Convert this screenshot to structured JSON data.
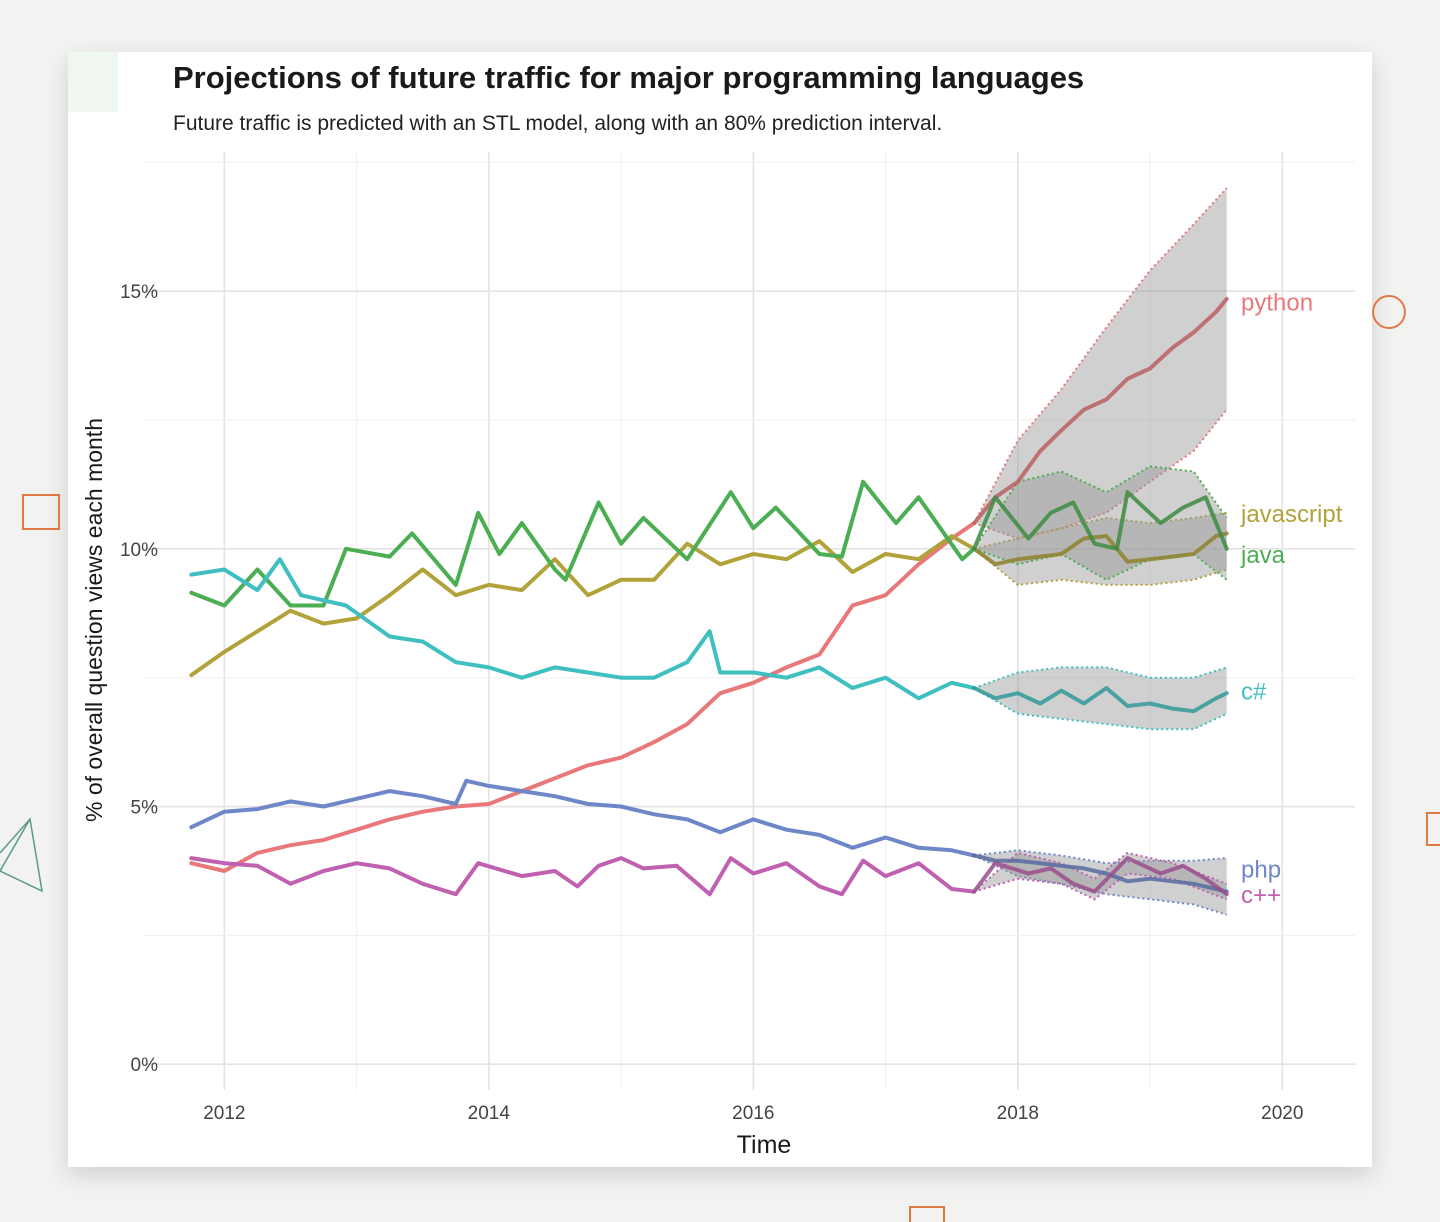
{
  "chart_data": {
    "type": "line",
    "title": "Projections of future traffic for major programming languages",
    "subtitle": "Future traffic is predicted with an STL model, along with an 80% prediction interval.",
    "xlabel": "Time",
    "ylabel": "% of overall question views each month",
    "xlim": [
      2011.4,
      2020.55
    ],
    "ylim": [
      -0.5,
      17.7
    ],
    "x_ticks": [
      2012,
      2014,
      2016,
      2018,
      2020
    ],
    "x_tick_labels": [
      "2012",
      "2014",
      "2016",
      "2018",
      "2020"
    ],
    "y_ticks": [
      0,
      5,
      10,
      15
    ],
    "y_tick_labels": [
      "0%",
      "5%",
      "10%",
      "15%"
    ],
    "legend": "direct labels at line ends (right)",
    "forecast_start": 2017.67,
    "series": [
      {
        "name": "python",
        "label": "python",
        "color": "#e8787a",
        "observed": [
          [
            2011.75,
            3.9
          ],
          [
            2012,
            3.75
          ],
          [
            2012.25,
            4.1
          ],
          [
            2012.5,
            4.25
          ],
          [
            2012.75,
            4.35
          ],
          [
            2013,
            4.55
          ],
          [
            2013.25,
            4.75
          ],
          [
            2013.5,
            4.9
          ],
          [
            2013.75,
            5
          ],
          [
            2014,
            5.05
          ],
          [
            2014.25,
            5.3
          ],
          [
            2014.5,
            5.55
          ],
          [
            2014.75,
            5.8
          ],
          [
            2015,
            5.95
          ],
          [
            2015.25,
            6.25
          ],
          [
            2015.5,
            6.6
          ],
          [
            2015.75,
            7.2
          ],
          [
            2016,
            7.4
          ],
          [
            2016.25,
            7.7
          ],
          [
            2016.5,
            7.95
          ],
          [
            2016.75,
            8.9
          ],
          [
            2017,
            9.1
          ],
          [
            2017.25,
            9.7
          ],
          [
            2017.5,
            10.2
          ],
          [
            2017.67,
            10.5
          ]
        ],
        "forecast": [
          [
            2017.67,
            10.5
          ],
          [
            2017.83,
            11.0
          ],
          [
            2018,
            11.3
          ],
          [
            2018.17,
            11.9
          ],
          [
            2018.33,
            12.3
          ],
          [
            2018.5,
            12.7
          ],
          [
            2018.67,
            12.9
          ],
          [
            2018.83,
            13.3
          ],
          [
            2019,
            13.5
          ],
          [
            2019.17,
            13.9
          ],
          [
            2019.33,
            14.2
          ],
          [
            2019.5,
            14.6
          ],
          [
            2019.58,
            14.85
          ]
        ],
        "interval": [
          [
            2017.67,
            10.5,
            10.5
          ],
          [
            2018,
            10.2,
            12.1
          ],
          [
            2018.33,
            10.4,
            13.1
          ],
          [
            2018.67,
            10.7,
            14.3
          ],
          [
            2019,
            11.3,
            15.4
          ],
          [
            2019.33,
            11.9,
            16.3
          ],
          [
            2019.58,
            12.7,
            17.0
          ]
        ]
      },
      {
        "name": "javascript",
        "label": "javascript",
        "color": "#b2a23a",
        "observed": [
          [
            2011.75,
            7.55
          ],
          [
            2012,
            8.0
          ],
          [
            2012.25,
            8.4
          ],
          [
            2012.5,
            8.8
          ],
          [
            2012.75,
            8.55
          ],
          [
            2013,
            8.65
          ],
          [
            2013.25,
            9.1
          ],
          [
            2013.5,
            9.6
          ],
          [
            2013.75,
            9.1
          ],
          [
            2014,
            9.3
          ],
          [
            2014.25,
            9.2
          ],
          [
            2014.5,
            9.8
          ],
          [
            2014.75,
            9.1
          ],
          [
            2015,
            9.4
          ],
          [
            2015.25,
            9.4
          ],
          [
            2015.5,
            10.1
          ],
          [
            2015.75,
            9.7
          ],
          [
            2016,
            9.9
          ],
          [
            2016.25,
            9.8
          ],
          [
            2016.5,
            10.15
          ],
          [
            2016.75,
            9.55
          ],
          [
            2017,
            9.9
          ],
          [
            2017.25,
            9.8
          ],
          [
            2017.5,
            10.25
          ],
          [
            2017.67,
            10.0
          ]
        ],
        "forecast": [
          [
            2017.67,
            10.0
          ],
          [
            2017.83,
            9.7
          ],
          [
            2018,
            9.8
          ],
          [
            2018.17,
            9.85
          ],
          [
            2018.33,
            9.9
          ],
          [
            2018.5,
            10.2
          ],
          [
            2018.67,
            10.25
          ],
          [
            2018.83,
            9.75
          ],
          [
            2019,
            9.8
          ],
          [
            2019.17,
            9.85
          ],
          [
            2019.33,
            9.9
          ],
          [
            2019.5,
            10.25
          ],
          [
            2019.58,
            10.3
          ]
        ],
        "interval": [
          [
            2017.67,
            10.0,
            10.0
          ],
          [
            2018,
            9.3,
            10.2
          ],
          [
            2018.33,
            9.4,
            10.4
          ],
          [
            2018.67,
            9.3,
            10.6
          ],
          [
            2019,
            9.3,
            10.5
          ],
          [
            2019.33,
            9.4,
            10.6
          ],
          [
            2019.58,
            9.6,
            10.7
          ]
        ]
      },
      {
        "name": "java",
        "label": "java",
        "color": "#4cae52",
        "observed": [
          [
            2011.75,
            9.15
          ],
          [
            2012,
            8.9
          ],
          [
            2012.25,
            9.6
          ],
          [
            2012.5,
            8.9
          ],
          [
            2012.75,
            8.9
          ],
          [
            2012.92,
            10.0
          ],
          [
            2013.25,
            9.85
          ],
          [
            2013.42,
            10.3
          ],
          [
            2013.75,
            9.3
          ],
          [
            2013.92,
            10.7
          ],
          [
            2014.08,
            9.9
          ],
          [
            2014.25,
            10.5
          ],
          [
            2014.5,
            9.6
          ],
          [
            2014.58,
            9.4
          ],
          [
            2014.83,
            10.9
          ],
          [
            2015,
            10.1
          ],
          [
            2015.17,
            10.6
          ],
          [
            2015.5,
            9.8
          ],
          [
            2015.83,
            11.1
          ],
          [
            2016,
            10.4
          ],
          [
            2016.17,
            10.8
          ],
          [
            2016.5,
            9.9
          ],
          [
            2016.67,
            9.85
          ],
          [
            2016.83,
            11.3
          ],
          [
            2017.08,
            10.5
          ],
          [
            2017.25,
            11.0
          ],
          [
            2017.58,
            9.8
          ],
          [
            2017.67,
            10.0
          ]
        ],
        "forecast": [
          [
            2017.67,
            10.0
          ],
          [
            2017.83,
            11.0
          ],
          [
            2018.08,
            10.2
          ],
          [
            2018.25,
            10.7
          ],
          [
            2018.42,
            10.9
          ],
          [
            2018.58,
            10.1
          ],
          [
            2018.75,
            10.0
          ],
          [
            2018.83,
            11.1
          ],
          [
            2019.08,
            10.5
          ],
          [
            2019.25,
            10.8
          ],
          [
            2019.42,
            11.0
          ],
          [
            2019.58,
            10.0
          ]
        ],
        "interval": [
          [
            2017.67,
            10.0,
            10.0
          ],
          [
            2018,
            9.7,
            11.3
          ],
          [
            2018.33,
            9.9,
            11.5
          ],
          [
            2018.67,
            9.4,
            11.1
          ],
          [
            2019,
            9.8,
            11.6
          ],
          [
            2019.33,
            9.9,
            11.5
          ],
          [
            2019.58,
            9.4,
            10.6
          ]
        ]
      },
      {
        "name": "c#",
        "label": "c#",
        "color": "#40bfc1",
        "observed": [
          [
            2011.75,
            9.5
          ],
          [
            2012,
            9.6
          ],
          [
            2012.25,
            9.2
          ],
          [
            2012.42,
            9.8
          ],
          [
            2012.58,
            9.1
          ],
          [
            2012.92,
            8.9
          ],
          [
            2013.25,
            8.3
          ],
          [
            2013.5,
            8.2
          ],
          [
            2013.75,
            7.8
          ],
          [
            2014,
            7.7
          ],
          [
            2014.25,
            7.5
          ],
          [
            2014.5,
            7.7
          ],
          [
            2014.75,
            7.6
          ],
          [
            2015,
            7.5
          ],
          [
            2015.25,
            7.5
          ],
          [
            2015.5,
            7.8
          ],
          [
            2015.67,
            8.4
          ],
          [
            2015.75,
            7.6
          ],
          [
            2016,
            7.6
          ],
          [
            2016.25,
            7.5
          ],
          [
            2016.5,
            7.7
          ],
          [
            2016.75,
            7.3
          ],
          [
            2017,
            7.5
          ],
          [
            2017.25,
            7.1
          ],
          [
            2017.5,
            7.4
          ],
          [
            2017.67,
            7.3
          ]
        ],
        "forecast": [
          [
            2017.67,
            7.3
          ],
          [
            2017.83,
            7.1
          ],
          [
            2018,
            7.2
          ],
          [
            2018.17,
            7.0
          ],
          [
            2018.33,
            7.25
          ],
          [
            2018.5,
            7.0
          ],
          [
            2018.67,
            7.3
          ],
          [
            2018.83,
            6.95
          ],
          [
            2019,
            7.0
          ],
          [
            2019.17,
            6.9
          ],
          [
            2019.33,
            6.85
          ],
          [
            2019.5,
            7.1
          ],
          [
            2019.58,
            7.2
          ]
        ],
        "interval": [
          [
            2017.67,
            7.3,
            7.3
          ],
          [
            2018,
            6.8,
            7.6
          ],
          [
            2018.33,
            6.7,
            7.7
          ],
          [
            2018.67,
            6.6,
            7.7
          ],
          [
            2019,
            6.5,
            7.5
          ],
          [
            2019.33,
            6.5,
            7.5
          ],
          [
            2019.58,
            6.8,
            7.7
          ]
        ]
      },
      {
        "name": "php",
        "label": "php",
        "color": "#6f86c8",
        "observed": [
          [
            2011.75,
            4.6
          ],
          [
            2012,
            4.9
          ],
          [
            2012.25,
            4.95
          ],
          [
            2012.5,
            5.1
          ],
          [
            2012.75,
            5.0
          ],
          [
            2013,
            5.15
          ],
          [
            2013.25,
            5.3
          ],
          [
            2013.5,
            5.2
          ],
          [
            2013.75,
            5.05
          ],
          [
            2013.83,
            5.5
          ],
          [
            2014,
            5.4
          ],
          [
            2014.25,
            5.3
          ],
          [
            2014.5,
            5.2
          ],
          [
            2014.75,
            5.05
          ],
          [
            2015,
            5.0
          ],
          [
            2015.25,
            4.85
          ],
          [
            2015.5,
            4.75
          ],
          [
            2015.75,
            4.5
          ],
          [
            2016,
            4.75
          ],
          [
            2016.25,
            4.55
          ],
          [
            2016.5,
            4.45
          ],
          [
            2016.75,
            4.2
          ],
          [
            2017,
            4.4
          ],
          [
            2017.25,
            4.2
          ],
          [
            2017.5,
            4.15
          ],
          [
            2017.67,
            4.05
          ]
        ],
        "forecast": [
          [
            2017.67,
            4.05
          ],
          [
            2017.83,
            3.95
          ],
          [
            2018,
            3.95
          ],
          [
            2018.17,
            3.9
          ],
          [
            2018.33,
            3.85
          ],
          [
            2018.5,
            3.8
          ],
          [
            2018.67,
            3.7
          ],
          [
            2018.83,
            3.55
          ],
          [
            2019,
            3.6
          ],
          [
            2019.17,
            3.55
          ],
          [
            2019.33,
            3.5
          ],
          [
            2019.5,
            3.4
          ],
          [
            2019.58,
            3.35
          ]
        ],
        "interval": [
          [
            2017.67,
            4.05,
            4.05
          ],
          [
            2018,
            3.65,
            4.15
          ],
          [
            2018.33,
            3.5,
            4.05
          ],
          [
            2018.67,
            3.3,
            3.9
          ],
          [
            2019,
            3.2,
            3.95
          ],
          [
            2019.33,
            3.1,
            3.95
          ],
          [
            2019.58,
            2.9,
            4.0
          ]
        ]
      },
      {
        "name": "c++",
        "label": "c++",
        "color": "#c060b0",
        "observed": [
          [
            2011.75,
            4.0
          ],
          [
            2012,
            3.9
          ],
          [
            2012.25,
            3.85
          ],
          [
            2012.5,
            3.5
          ],
          [
            2012.75,
            3.75
          ],
          [
            2013,
            3.9
          ],
          [
            2013.25,
            3.8
          ],
          [
            2013.5,
            3.5
          ],
          [
            2013.75,
            3.3
          ],
          [
            2013.92,
            3.9
          ],
          [
            2014.25,
            3.65
          ],
          [
            2014.5,
            3.75
          ],
          [
            2014.67,
            3.45
          ],
          [
            2014.83,
            3.85
          ],
          [
            2015,
            4.0
          ],
          [
            2015.17,
            3.8
          ],
          [
            2015.42,
            3.85
          ],
          [
            2015.67,
            3.3
          ],
          [
            2015.83,
            4.0
          ],
          [
            2016,
            3.7
          ],
          [
            2016.25,
            3.9
          ],
          [
            2016.5,
            3.45
          ],
          [
            2016.67,
            3.3
          ],
          [
            2016.83,
            3.95
          ],
          [
            2017,
            3.65
          ],
          [
            2017.25,
            3.9
          ],
          [
            2017.5,
            3.4
          ],
          [
            2017.67,
            3.35
          ]
        ],
        "forecast": [
          [
            2017.67,
            3.35
          ],
          [
            2017.83,
            3.9
          ],
          [
            2018.08,
            3.7
          ],
          [
            2018.25,
            3.8
          ],
          [
            2018.42,
            3.5
          ],
          [
            2018.58,
            3.35
          ],
          [
            2018.83,
            4.0
          ],
          [
            2019.08,
            3.7
          ],
          [
            2019.25,
            3.85
          ],
          [
            2019.42,
            3.6
          ],
          [
            2019.58,
            3.3
          ]
        ],
        "interval": [
          [
            2017.67,
            3.35,
            3.35
          ],
          [
            2018,
            3.6,
            4.1
          ],
          [
            2018.33,
            3.5,
            3.9
          ],
          [
            2018.58,
            3.2,
            3.6
          ],
          [
            2018.83,
            3.7,
            4.1
          ],
          [
            2019.17,
            3.6,
            3.9
          ],
          [
            2019.58,
            3.2,
            3.5
          ]
        ]
      }
    ]
  },
  "decor": {
    "accent_orange": "#e07a45",
    "accent_teal": "#5a9a88"
  }
}
